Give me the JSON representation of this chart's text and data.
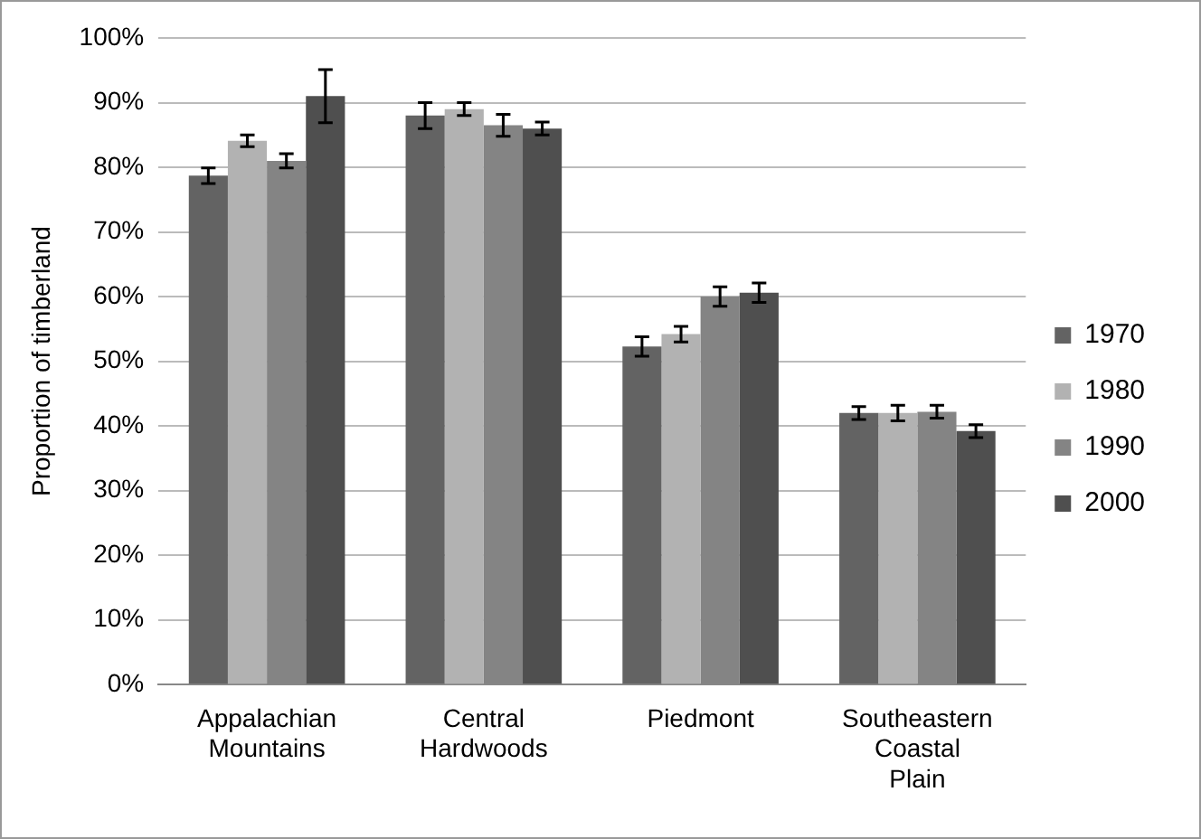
{
  "chart_data": {
    "type": "bar",
    "ylabel": "Proportion of timberland",
    "categories": [
      "Appalachian Mountains",
      "Central Hardwoods",
      "Piedmont",
      "Southeastern Coastal Plain"
    ],
    "series": [
      {
        "name": "1970",
        "color": "#636363",
        "values": [
          78.7,
          88,
          52.3,
          42
        ],
        "errors": [
          1.2,
          2,
          1.5,
          1
        ]
      },
      {
        "name": "1980",
        "color": "#b2b2b2",
        "values": [
          84.1,
          89,
          54.2,
          42
        ],
        "errors": [
          0.9,
          1,
          1.2,
          1.2
        ]
      },
      {
        "name": "1990",
        "color": "#848484",
        "values": [
          81,
          86.5,
          60,
          42.2
        ],
        "errors": [
          1.1,
          1.7,
          1.5,
          1
        ]
      },
      {
        "name": "2000",
        "color": "#4f4f4f",
        "values": [
          91,
          86,
          60.6,
          39.2
        ],
        "errors": [
          4.1,
          1,
          1.5,
          1
        ]
      }
    ],
    "ylim": [
      0,
      100
    ],
    "yticks": [
      {
        "value": 0,
        "label": "0%"
      },
      {
        "value": 10,
        "label": "10%"
      },
      {
        "value": 20,
        "label": "20%"
      },
      {
        "value": 30,
        "label": "30%"
      },
      {
        "value": 40,
        "label": "40%"
      },
      {
        "value": 50,
        "label": "50%"
      },
      {
        "value": 60,
        "label": "60%"
      },
      {
        "value": 70,
        "label": "70%"
      },
      {
        "value": 80,
        "label": "80%"
      },
      {
        "value": 90,
        "label": "90%"
      },
      {
        "value": 100,
        "label": "100%"
      }
    ],
    "grid": "y",
    "legend": "right"
  }
}
